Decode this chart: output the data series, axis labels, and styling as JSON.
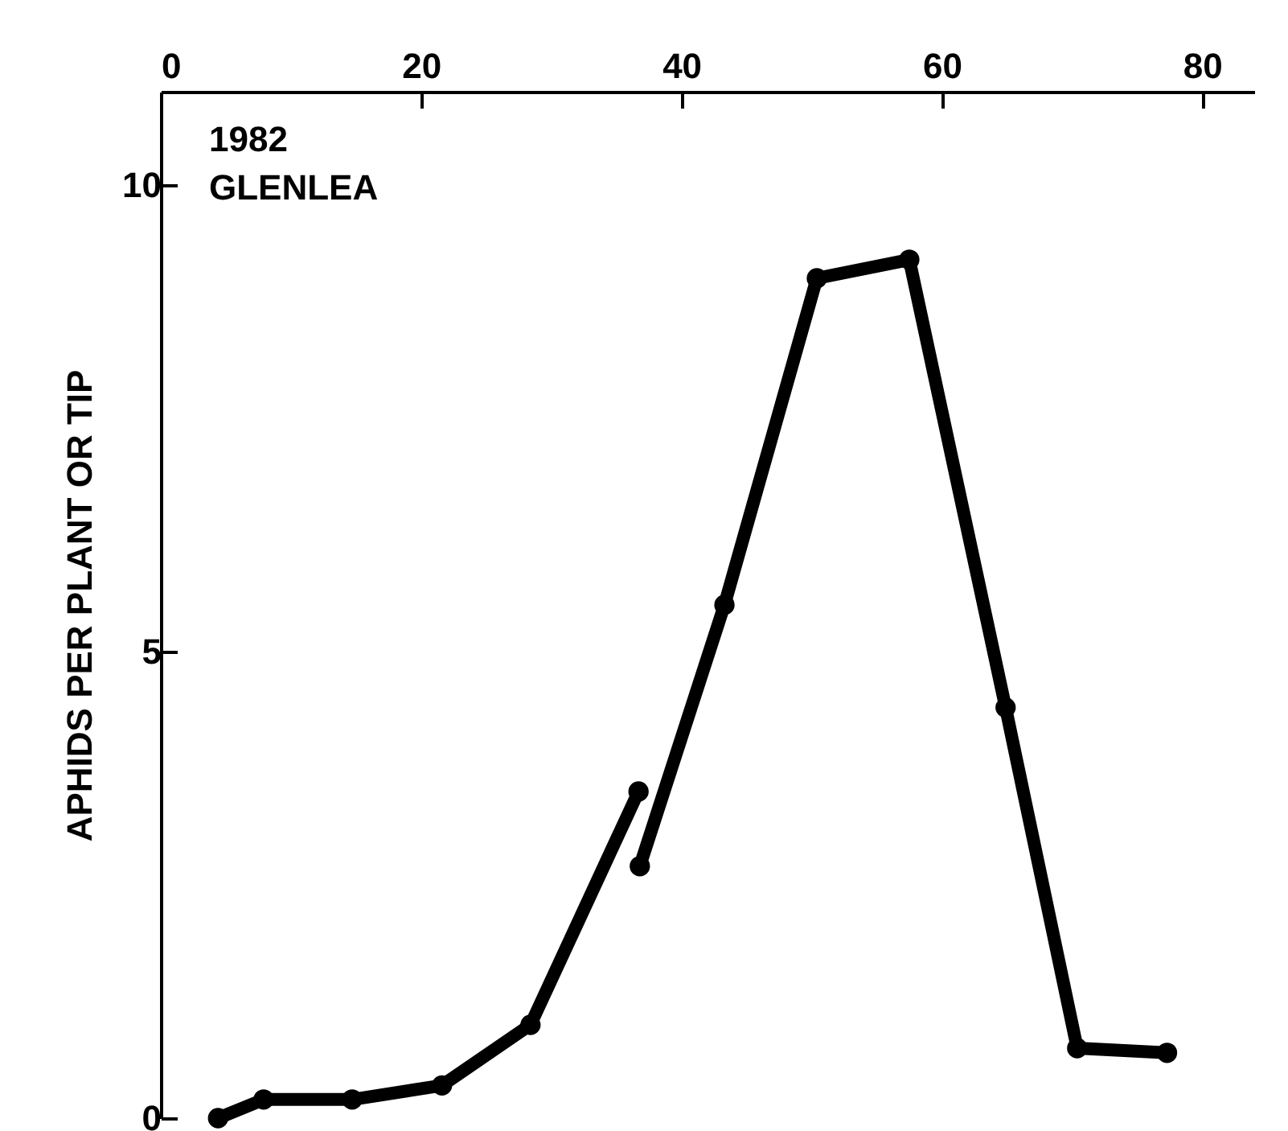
{
  "chart_data": {
    "type": "line",
    "ylabel": "APHIDS PER PLANT OR TIP",
    "annotations": [
      "1982",
      "GLENLEA"
    ],
    "series": [
      {
        "color": "#000000",
        "x": [
          4.4,
          7.9,
          14.7,
          21.6,
          28.4,
          36.7
        ],
        "values": [
          0,
          0.2,
          0.2,
          0.35,
          1.0,
          3.5
        ]
      },
      {
        "color": "#000000",
        "x": [
          36.8,
          43.3,
          50.4,
          57.5,
          64.9,
          70.4,
          77.3
        ],
        "values": [
          2.7,
          5.5,
          9.0,
          9.2,
          4.4,
          0.75,
          0.7
        ]
      }
    ],
    "xlim": [
      0,
      84
    ],
    "xticks": [
      0,
      20,
      40,
      60,
      80
    ],
    "ylim": [
      0,
      11
    ],
    "yticks": [
      0,
      5,
      10
    ],
    "marker": "circle",
    "line_style": "solid"
  }
}
